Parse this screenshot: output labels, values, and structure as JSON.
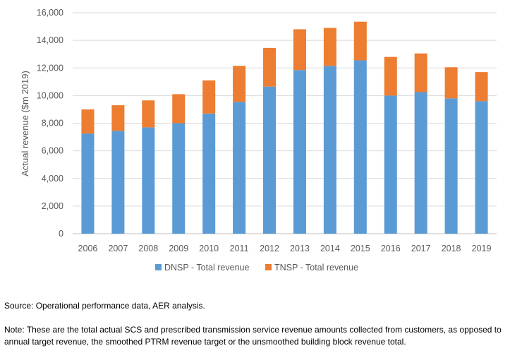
{
  "chart_data": {
    "type": "bar",
    "stacked": true,
    "categories": [
      "2006",
      "2007",
      "2008",
      "2009",
      "2010",
      "2011",
      "2012",
      "2013",
      "2014",
      "2015",
      "2016",
      "2017",
      "2018",
      "2019"
    ],
    "series": [
      {
        "name": "DNSP - Total revenue",
        "color": "#5B9BD5",
        "values": [
          7250,
          7450,
          7700,
          8000,
          8700,
          9550,
          10650,
          11850,
          12150,
          12550,
          10000,
          10250,
          9800,
          9600
        ]
      },
      {
        "name": "TNSP - Total revenue",
        "color": "#ED7D31",
        "values": [
          1750,
          1850,
          1950,
          2100,
          2400,
          2600,
          2800,
          2950,
          2750,
          2800,
          2800,
          2800,
          2250,
          2100
        ]
      }
    ],
    "xlabel": "",
    "ylabel": "Actual revenue ($m 2019)",
    "ylim": [
      0,
      16000
    ],
    "yticks": [
      "0",
      "2,000",
      "4,000",
      "6,000",
      "8,000",
      "10,000",
      "12,000",
      "14,000",
      "16,000"
    ],
    "ytick_values": [
      0,
      2000,
      4000,
      6000,
      8000,
      10000,
      12000,
      14000,
      16000
    ],
    "grid": true,
    "legend": "bottom"
  },
  "footnotes": {
    "source": "Source: Operational performance data, AER analysis.",
    "note": "Note: These are the total actual SCS and prescribed transmission service revenue amounts collected from customers, as opposed to annual target revenue, the smoothed PTRM revenue target or the unsmoothed building block revenue total."
  }
}
